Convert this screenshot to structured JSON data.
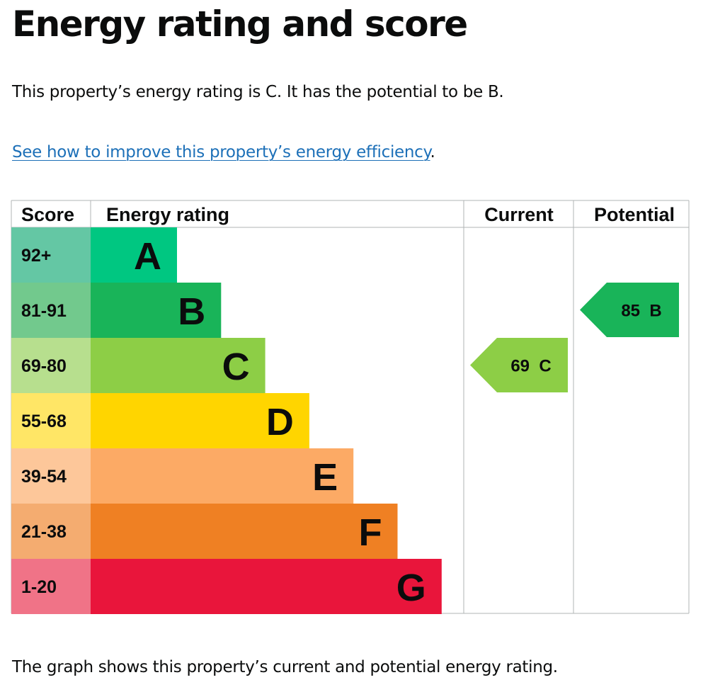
{
  "heading": "Energy rating and score",
  "intro": "This property’s energy rating is C. It has the potential to be B.",
  "improve_link": {
    "text": "See how to improve this property’s energy efficiency",
    "suffix": "."
  },
  "footer": "The graph shows this property’s current and potential energy rating.",
  "chart_data": {
    "type": "bar",
    "columns": {
      "score": "Score",
      "rating": "Energy rating",
      "current": "Current",
      "potential": "Potential"
    },
    "bands": [
      {
        "letter": "A",
        "range": "92+",
        "color": "#00c781",
        "score_bg": "#64c7a4"
      },
      {
        "letter": "B",
        "range": "81-91",
        "color": "#19b459",
        "score_bg": "#72c98d"
      },
      {
        "letter": "C",
        "range": "69-80",
        "color": "#8dce46",
        "score_bg": "#b7df8e"
      },
      {
        "letter": "D",
        "range": "55-68",
        "color": "#ffd500",
        "score_bg": "#ffe666"
      },
      {
        "letter": "E",
        "range": "39-54",
        "color": "#fcaa65",
        "score_bg": "#fdc79a"
      },
      {
        "letter": "F",
        "range": "21-38",
        "color": "#ef8023",
        "score_bg": "#f4ac70"
      },
      {
        "letter": "G",
        "range": "1-20",
        "color": "#e9153b",
        "score_bg": "#f07387"
      }
    ],
    "current": {
      "score": 69,
      "band": "C",
      "label": "69 C",
      "color": "#8dce46"
    },
    "potential": {
      "score": 85,
      "band": "B",
      "label": "85 B",
      "color": "#19b459"
    }
  }
}
